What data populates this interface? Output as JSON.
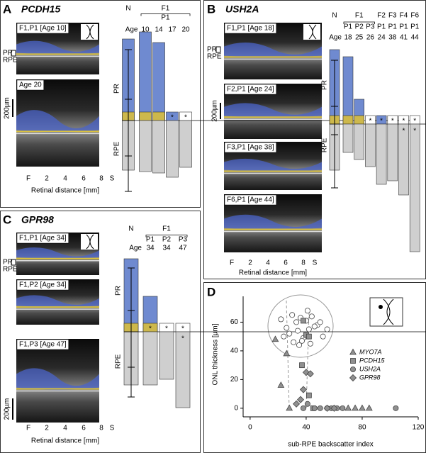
{
  "panels": [
    {
      "letter": "A",
      "gene": "PCDH15",
      "images": [
        "F1,P1 [Age 10]",
        "Age 20"
      ],
      "layers": [
        "PR",
        "RPE"
      ],
      "scale_bar": "200µm",
      "distance_ticks": [
        "F",
        "2",
        "4",
        "6",
        "8",
        "S"
      ],
      "distance_label": "Retinal distance [mm]"
    },
    {
      "letter": "B",
      "gene": "USH2A",
      "images": [
        "F1,P1 [Age 18]",
        "F2,P1 [Age 24]",
        "F3,P1 [Age 38]",
        "F6,P1 [Age 44]"
      ],
      "layers": [
        "PR",
        "RPE"
      ],
      "scale_bar": "200µm",
      "distance_ticks": [
        "F",
        "2",
        "4",
        "6",
        "8",
        "S"
      ],
      "distance_label": "Retinal distance [mm]"
    },
    {
      "letter": "C",
      "gene": "GPR98",
      "images": [
        "F1,P1 [Age 34]",
        "F1,P2 [Age 34]",
        "F1,P3 [Age 47]"
      ],
      "layers": [
        "PR",
        "RPE"
      ],
      "scale_bar": "200µm",
      "distance_ticks": [
        "F",
        "2",
        "4",
        "6",
        "8",
        "S"
      ],
      "distance_label": "Retinal distance [mm]"
    },
    {
      "letter": "D"
    }
  ],
  "chart_data": [
    {
      "type": "bar",
      "layer_labels": [
        "PR",
        "RPE"
      ],
      "age_label": "Age",
      "normal": {
        "label": "N",
        "pr": 115,
        "pr_range": [
          30,
          100
        ],
        "rpe": 70,
        "rpe_range": [
          50,
          100
        ]
      },
      "groups": [
        {
          "label": "F1",
          "patients": [
            {
              "label": "P1",
              "ages": [
                10,
                14,
                17,
                20
              ],
              "pr": [
                125,
                110,
                12,
                0
              ],
              "pr_labels": [
                null,
                null,
                "*",
                "*"
              ],
              "rpe": [
                72,
                74,
                80,
                66
              ]
            }
          ]
        }
      ]
    },
    {
      "type": "bar",
      "layer_labels": [
        "PR",
        "RPE"
      ],
      "age_label": "Age",
      "normal": {
        "label": "N",
        "pr": 105,
        "pr_range": [
          25,
          90
        ],
        "rpe": 65,
        "rpe_range": [
          15,
          90
        ]
      },
      "groups": [
        {
          "label": "F1",
          "patients": [
            {
              "label": "P1",
              "ages": [
                18
              ],
              "pr": [
                95
              ],
              "rpe": [
                40
              ]
            },
            {
              "label": "P2",
              "ages": [
                25
              ],
              "pr": [
                35
              ],
              "rpe": [
                50
              ]
            },
            {
              "label": "P3",
              "ages": [
                26
              ],
              "pr": [
                0
              ],
              "pr_labels": [
                "*"
              ],
              "rpe": [
                60
              ]
            }
          ]
        },
        {
          "label": "F2",
          "patients": [
            {
              "label": "P1",
              "ages": [
                24
              ],
              "pr": [
                12
              ],
              "pr_labels": [
                "*"
              ],
              "rpe": [
                85
              ]
            }
          ]
        },
        {
          "label": "F3",
          "patients": [
            {
              "label": "P1",
              "ages": [
                38
              ],
              "pr": [
                0
              ],
              "pr_labels": [
                "*"
              ],
              "rpe": [
                80
              ]
            }
          ]
        },
        {
          "label": "F4",
          "patients": [
            {
              "label": "P1",
              "ages": [
                41
              ],
              "pr": [
                0
              ],
              "pr_labels": [
                "*"
              ],
              "rpe": [
                100
              ],
              "rpe_labels": [
                "*"
              ]
            }
          ]
        },
        {
          "label": "F6",
          "patients": [
            {
              "label": "P1",
              "ages": [
                44
              ],
              "pr": [
                0
              ],
              "pr_labels": [
                "*"
              ],
              "rpe": [
                180
              ],
              "rpe_labels": [
                "*"
              ]
            }
          ]
        }
      ]
    },
    {
      "type": "bar",
      "layer_labels": [
        "PR",
        "RPE"
      ],
      "age_label": "Age",
      "normal": {
        "label": "N",
        "pr": 103,
        "pr_range": [
          30,
          90
        ],
        "rpe": 75,
        "rpe_range": [
          50,
          92
        ]
      },
      "groups": [
        {
          "label": "F1",
          "patients": [
            {
              "label": "P1",
              "ages": [
                34
              ],
              "pr": [
                50
              ],
              "pr_labels": [
                "*"
              ],
              "rpe": [
                75
              ]
            },
            {
              "label": "P2",
              "ages": [
                34
              ],
              "pr": [
                0
              ],
              "pr_labels": [
                "*"
              ],
              "rpe": [
                67
              ]
            },
            {
              "label": "P3",
              "ages": [
                47
              ],
              "pr": [
                0
              ],
              "pr_labels": [
                "*"
              ],
              "rpe": [
                107
              ],
              "rpe_labels": [
                "*"
              ]
            }
          ]
        }
      ]
    },
    {
      "type": "scatter",
      "x_label": "sub-RPE backscatter index",
      "y_label": "ONL thickness [µm]",
      "xlim": [
        -5,
        120
      ],
      "ylim": [
        -6,
        78
      ],
      "xticks": [
        0,
        40,
        80,
        120
      ],
      "yticks": [
        0,
        20,
        40,
        60
      ],
      "series": [
        {
          "color": "#ffffff",
          "marker": "circle",
          "x": [
            22,
            26,
            30,
            33,
            36,
            40,
            44,
            48,
            28,
            34,
            38,
            42,
            46,
            50,
            31,
            37,
            43,
            52,
            24,
            41,
            55,
            35
          ],
          "values": [
            62,
            56,
            65,
            60,
            63,
            61,
            64,
            58,
            52,
            54,
            49,
            55,
            57,
            60,
            46,
            47,
            45,
            50,
            50,
            68,
            55,
            44
          ]
        },
        {
          "name": "MYO7A",
          "color": "#909090",
          "marker": "triangle",
          "x": [
            18,
            22,
            26,
            28,
            70,
            75,
            80,
            85
          ],
          "values": [
            48,
            16,
            38,
            0,
            0,
            0,
            0,
            0
          ]
        },
        {
          "name": "PCDH15",
          "color": "#909090",
          "marker": "square",
          "x": [
            38,
            40,
            42,
            37,
            42,
            45
          ],
          "values": [
            61,
            51,
            50,
            30,
            9,
            0
          ]
        },
        {
          "name": "USH2A",
          "color": "#909090",
          "marker": "circle",
          "x": [
            38,
            46,
            50,
            55,
            58,
            62,
            66,
            104,
            41
          ],
          "values": [
            0,
            0,
            0,
            0,
            0,
            0,
            0,
            0,
            3
          ]
        },
        {
          "name": "GPR98",
          "color": "#909090",
          "marker": "diamond",
          "x": [
            40,
            43,
            38,
            36,
            33,
            55,
            60
          ],
          "values": [
            25,
            24,
            13,
            6,
            3,
            0,
            0
          ]
        }
      ]
    }
  ]
}
